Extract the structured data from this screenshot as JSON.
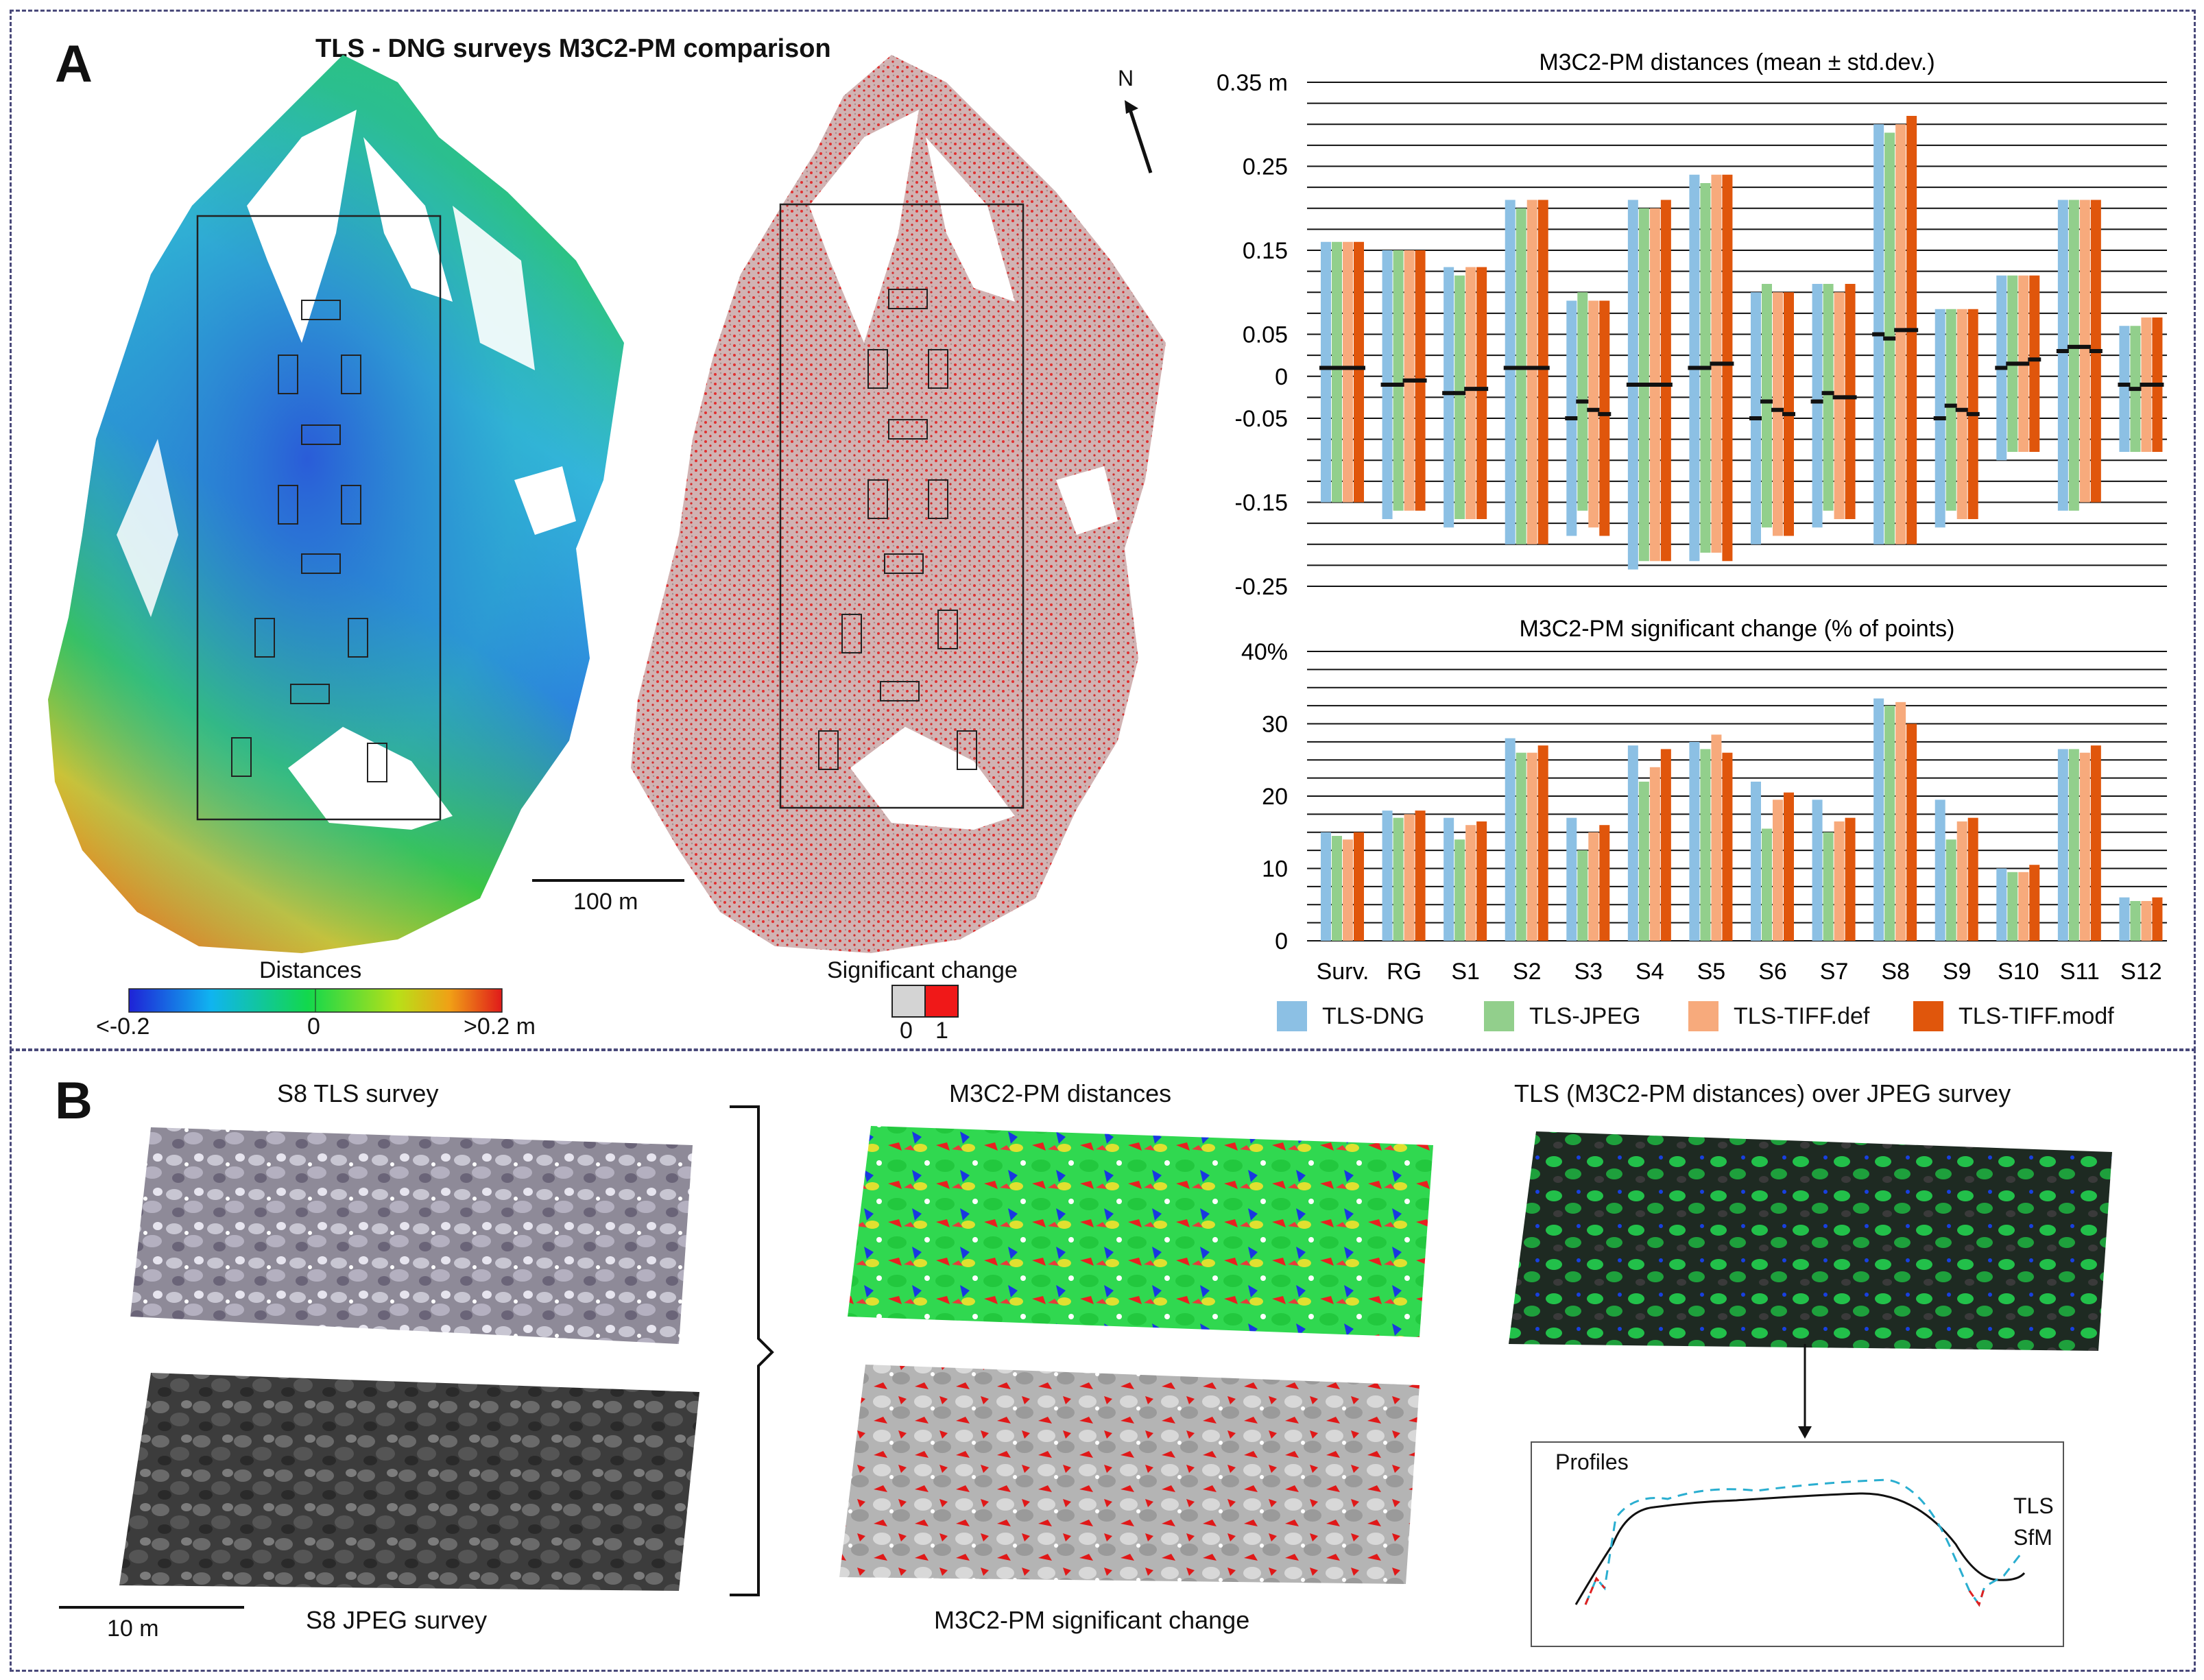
{
  "panel_a": {
    "letter": "A",
    "title": "TLS - DNG surveys M3C2-PM comparison",
    "north": "N",
    "scalebar": "100 m",
    "distances_label": "Distances",
    "distances_ticks": [
      "<-0.2",
      "0",
      ">0.2 m"
    ],
    "sigchange_label": "Significant change",
    "sigchange_ticks": [
      "0",
      "1"
    ]
  },
  "panel_b": {
    "letter": "B",
    "tls_title": "S8 TLS survey",
    "jpeg_title": "S8 JPEG survey",
    "dist_title": "M3C2-PM distances",
    "sig_title": "M3C2-PM significant  change",
    "overlay_title": "TLS (M3C2-PM distances) over JPEG survey",
    "profiles_title": "Profiles",
    "profile_tls": "TLS",
    "profile_sfm": "SfM",
    "scalebar": "10 m"
  },
  "colors": {
    "TLS-DNG": "#8cc0e4",
    "TLS-JPEG": "#92cf8c",
    "TLS-TIFF.def": "#f7aa7c",
    "TLS-TIFF.modf": "#e0560c"
  },
  "chart_data": [
    {
      "type": "bar",
      "title": "M3C2-PM distances (mean ± std.dev.)",
      "categories": [
        "Surv.",
        "RG",
        "S1",
        "S2",
        "S3",
        "S4",
        "S5",
        "S6",
        "S7",
        "S8",
        "S9",
        "S10",
        "S11",
        "S12"
      ],
      "ytick_labels": [
        "0.35 m",
        "0.25",
        "0.15",
        "0.05",
        "0",
        "-0.05",
        "-0.15",
        "-0.25"
      ],
      "ylim": [
        -0.25,
        0.35
      ],
      "series": [
        {
          "name": "TLS-DNG",
          "mean": [
            0.01,
            -0.01,
            -0.02,
            0.01,
            -0.05,
            -0.01,
            0.01,
            -0.05,
            -0.03,
            0.05,
            -0.05,
            0.01,
            0.03,
            -0.01
          ],
          "upper": [
            0.16,
            0.15,
            0.13,
            0.21,
            0.09,
            0.21,
            0.24,
            0.1,
            0.11,
            0.3,
            0.08,
            0.12,
            0.21,
            0.06
          ],
          "lower": [
            -0.15,
            -0.17,
            -0.18,
            -0.2,
            -0.19,
            -0.23,
            -0.22,
            -0.2,
            -0.18,
            -0.2,
            -0.18,
            -0.1,
            -0.16,
            -0.09
          ]
        },
        {
          "name": "TLS-JPEG",
          "mean": [
            0.01,
            -0.01,
            -0.02,
            0.01,
            -0.03,
            -0.01,
            0.01,
            -0.03,
            -0.02,
            0.045,
            -0.035,
            0.015,
            0.035,
            -0.015
          ],
          "upper": [
            0.16,
            0.15,
            0.12,
            0.2,
            0.1,
            0.2,
            0.23,
            0.11,
            0.11,
            0.29,
            0.08,
            0.12,
            0.21,
            0.06
          ],
          "lower": [
            -0.15,
            -0.16,
            -0.17,
            -0.2,
            -0.16,
            -0.22,
            -0.21,
            -0.18,
            -0.16,
            -0.2,
            -0.16,
            -0.09,
            -0.16,
            -0.09
          ]
        },
        {
          "name": "TLS-TIFF.def",
          "mean": [
            0.01,
            -0.005,
            -0.015,
            0.01,
            -0.04,
            -0.01,
            0.015,
            -0.04,
            -0.025,
            0.055,
            -0.04,
            0.015,
            0.035,
            -0.01
          ],
          "upper": [
            0.16,
            0.15,
            0.13,
            0.21,
            0.09,
            0.2,
            0.24,
            0.1,
            0.1,
            0.3,
            0.08,
            0.12,
            0.21,
            0.07
          ],
          "lower": [
            -0.15,
            -0.16,
            -0.17,
            -0.2,
            -0.18,
            -0.22,
            -0.21,
            -0.19,
            -0.17,
            -0.2,
            -0.17,
            -0.09,
            -0.15,
            -0.09
          ]
        },
        {
          "name": "TLS-TIFF.modf",
          "mean": [
            0.01,
            -0.005,
            -0.015,
            0.01,
            -0.045,
            -0.01,
            0.015,
            -0.045,
            -0.025,
            0.055,
            -0.045,
            0.02,
            0.03,
            -0.01
          ],
          "upper": [
            0.16,
            0.15,
            0.13,
            0.21,
            0.09,
            0.21,
            0.24,
            0.1,
            0.11,
            0.31,
            0.08,
            0.12,
            0.21,
            0.07
          ],
          "lower": [
            -0.15,
            -0.16,
            -0.17,
            -0.2,
            -0.19,
            -0.22,
            -0.22,
            -0.19,
            -0.17,
            -0.2,
            -0.17,
            -0.09,
            -0.15,
            -0.09
          ]
        }
      ]
    },
    {
      "type": "bar",
      "title": "M3C2-PM significant change (% of points)",
      "categories": [
        "Surv.",
        "RG",
        "S1",
        "S2",
        "S3",
        "S4",
        "S5",
        "S6",
        "S7",
        "S8",
        "S9",
        "S10",
        "S11",
        "S12"
      ],
      "ytick_labels": [
        "40%",
        "30",
        "20",
        "10",
        "0"
      ],
      "ylim": [
        0,
        40
      ],
      "series": [
        {
          "name": "TLS-DNG",
          "values": [
            15,
            18,
            17,
            28,
            17,
            27,
            27.5,
            22,
            19.5,
            33.5,
            19.5,
            10,
            26.5,
            6
          ]
        },
        {
          "name": "TLS-JPEG",
          "values": [
            14.5,
            17,
            14,
            26,
            12.5,
            22,
            26.5,
            15.5,
            15,
            32.5,
            14,
            9.5,
            26.5,
            5.5
          ]
        },
        {
          "name": "TLS-TIFF.def",
          "values": [
            14,
            17.5,
            16,
            26,
            15,
            24,
            28.5,
            19.5,
            16.5,
            33,
            16.5,
            9.5,
            26,
            5.5
          ]
        },
        {
          "name": "TLS-TIFF.modf",
          "values": [
            15,
            18,
            16.5,
            27,
            16,
            26.5,
            26,
            20.5,
            17,
            30,
            17,
            10.5,
            27,
            6
          ]
        }
      ]
    }
  ]
}
